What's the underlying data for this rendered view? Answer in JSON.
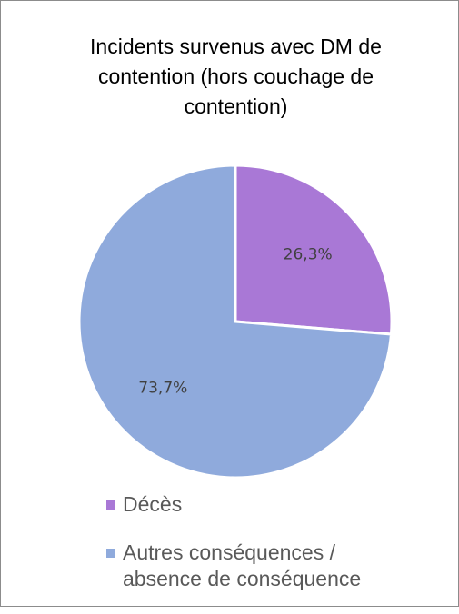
{
  "chart_data": {
    "type": "pie",
    "title_lines": [
      "Incidents survenus avec DM de",
      "contention (hors couchage de",
      "contention)"
    ],
    "categories": [
      "Décès",
      "Autres conséquences / absence de conséquence"
    ],
    "values": [
      26.3,
      73.7
    ],
    "data_labels": [
      "26,3%",
      "73,7%"
    ],
    "legend_lines": [
      [
        "Décès"
      ],
      [
        "Autres conséquences /",
        "absence de conséquence"
      ]
    ],
    "colors": [
      "#a978d6",
      "#8faadc"
    ],
    "start_angle_deg": 0,
    "direction": "clockwise",
    "legend_position": "bottom"
  }
}
